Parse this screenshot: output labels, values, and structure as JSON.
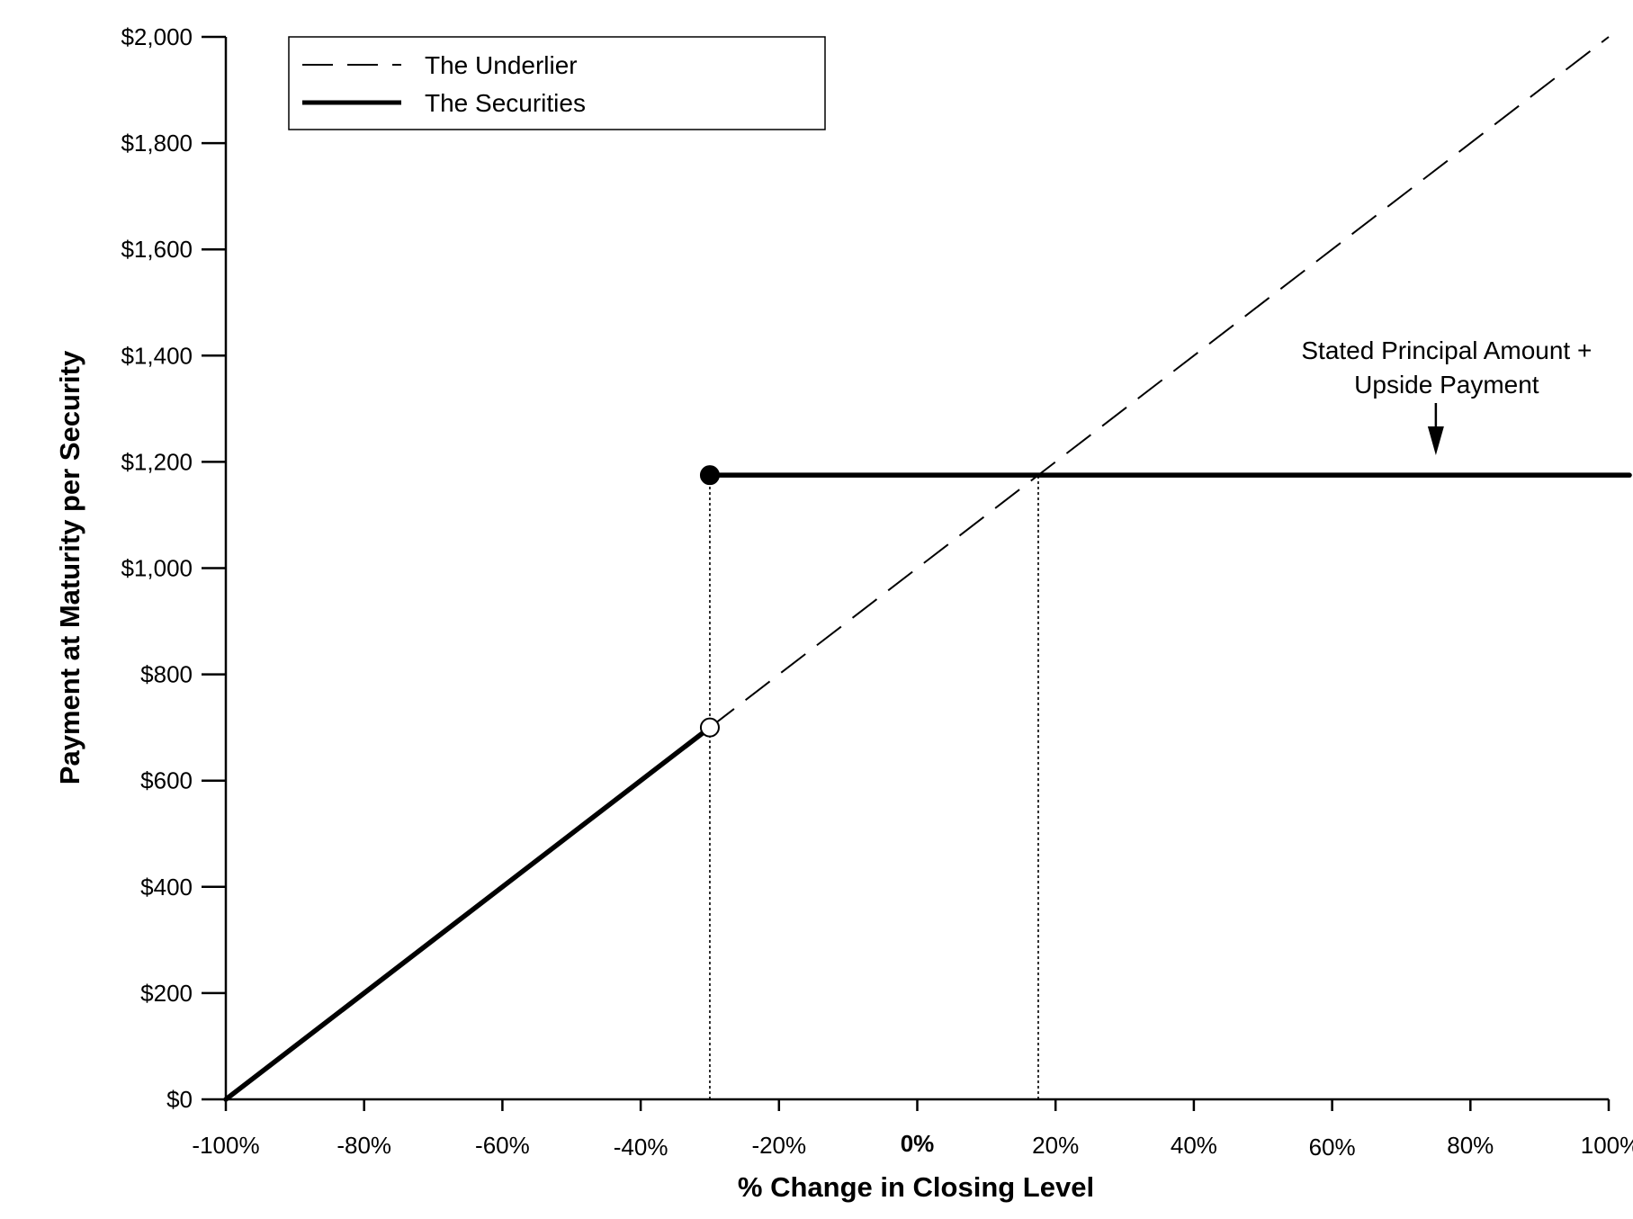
{
  "chart_data": {
    "type": "line",
    "xlabel": "% Change in Closing Level",
    "ylabel": "Payment at Maturity per Security",
    "xlim": [
      -100,
      100
    ],
    "ylim": [
      0,
      2000
    ],
    "x_ticks": [
      -100,
      -80,
      -60,
      -40,
      -20,
      0,
      20,
      40,
      60,
      80,
      100
    ],
    "x_tick_labels": [
      "-100%",
      "-80%",
      "-60%",
      "-40%",
      "-20%",
      "0%",
      "20%",
      "40%",
      "60%",
      "80%",
      "100%"
    ],
    "y_ticks": [
      0,
      200,
      400,
      600,
      800,
      1000,
      1200,
      1400,
      1600,
      1800,
      2000
    ],
    "y_tick_labels": [
      "$0",
      "$200",
      "$400",
      "$600",
      "$800",
      "$1,000",
      "$1,200",
      "$1,400",
      "$1,600",
      "$1,800",
      "$2,000"
    ],
    "grid": false,
    "legend_position": "top-left",
    "series": [
      {
        "name": "The Underlier",
        "style": "dashed",
        "x": [
          -30,
          100
        ],
        "y": [
          700,
          2000
        ]
      },
      {
        "name": "The Securities",
        "style": "solid",
        "segments": [
          {
            "x": [
              -100,
              -30
            ],
            "y": [
              0,
              700
            ]
          },
          {
            "x": [
              -30,
              103
            ],
            "y": [
              1175,
              1175
            ]
          }
        ]
      }
    ],
    "markers": [
      {
        "x": -30,
        "y": 1175,
        "fill": "filled"
      },
      {
        "x": -30,
        "y": 700,
        "fill": "open"
      }
    ],
    "reference_lines": [
      {
        "x": -30,
        "y_from": 0,
        "y_to": 1175,
        "style": "dotted"
      },
      {
        "x": 17.5,
        "y_from": 0,
        "y_to": 1175,
        "style": "dotted"
      }
    ],
    "annotations": [
      {
        "lines": [
          "Stated Principal Amount +",
          "Upside Payment"
        ],
        "x": 75,
        "y": 1175,
        "arrow": "down"
      }
    ],
    "colors": {
      "line": "#000000",
      "background": "#ffffff"
    }
  }
}
